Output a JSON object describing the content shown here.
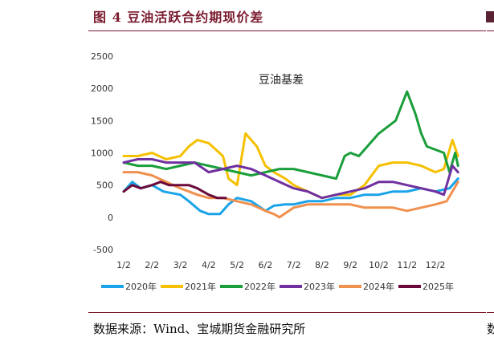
{
  "figure": {
    "title": "图 4 豆油活跃合约期现价差",
    "source": "数据来源：Wind、宝城期货金融研究所"
  },
  "chart_data": {
    "type": "line",
    "title": "豆油基差",
    "xlabel": "",
    "ylabel": "",
    "x_ticks": [
      "1/2",
      "2/2",
      "3/2",
      "4/2",
      "5/2",
      "6/2",
      "7/2",
      "8/2",
      "9/2",
      "10/2",
      "11/2",
      "12/2"
    ],
    "y_ticks": [
      2500,
      2000,
      1500,
      1000,
      500,
      0,
      -500
    ],
    "ylim": [
      -500,
      2500
    ],
    "grid": false,
    "legend_position": "bottom",
    "series": [
      {
        "name": "2020年",
        "color": "#1aa3e8",
        "x": [
          0,
          0.3,
          0.6,
          1.0,
          1.4,
          2.0,
          2.3,
          2.7,
          3.0,
          3.4,
          3.7,
          4.0,
          4.5,
          5.0,
          5.3,
          5.7,
          6.0,
          6.5,
          7.0,
          7.5,
          8.0,
          8.5,
          9.0,
          9.5,
          10.0,
          10.5,
          11.0,
          11.5,
          11.8
        ],
        "values": [
          400,
          550,
          450,
          500,
          400,
          350,
          250,
          100,
          50,
          50,
          200,
          300,
          250,
          100,
          180,
          200,
          200,
          250,
          250,
          300,
          300,
          350,
          350,
          400,
          400,
          450,
          400,
          450,
          600
        ]
      },
      {
        "name": "2021年",
        "color": "#f5c000",
        "x": [
          0,
          0.5,
          1.0,
          1.5,
          2.0,
          2.3,
          2.6,
          3.0,
          3.5,
          3.7,
          4.0,
          4.3,
          4.7,
          5.0,
          5.3,
          5.7,
          6.0,
          6.5,
          7.0,
          7.5,
          8.0,
          8.5,
          9.0,
          9.5,
          10.0,
          10.5,
          11.0,
          11.3,
          11.6,
          11.8
        ],
        "values": [
          950,
          950,
          1000,
          900,
          950,
          1100,
          1200,
          1150,
          950,
          600,
          500,
          1300,
          1100,
          800,
          700,
          600,
          500,
          400,
          300,
          350,
          350,
          500,
          800,
          850,
          850,
          800,
          700,
          750,
          1200,
          950
        ]
      },
      {
        "name": "2022年",
        "color": "#1a9e3a",
        "x": [
          0,
          0.5,
          1.0,
          1.5,
          2.0,
          2.5,
          3.0,
          3.5,
          4.0,
          4.5,
          5.0,
          5.5,
          6.0,
          6.5,
          7.0,
          7.5,
          7.8,
          8.0,
          8.3,
          8.6,
          9.0,
          9.3,
          9.6,
          10.0,
          10.3,
          10.5,
          10.7,
          11.0,
          11.3,
          11.5,
          11.7,
          11.8
        ],
        "values": [
          850,
          800,
          800,
          750,
          800,
          850,
          800,
          750,
          700,
          650,
          700,
          750,
          750,
          700,
          650,
          600,
          950,
          1000,
          950,
          1100,
          1300,
          1400,
          1500,
          1950,
          1600,
          1300,
          1100,
          1050,
          1000,
          700,
          1000,
          800
        ]
      },
      {
        "name": "2023年",
        "color": "#7030a0",
        "x": [
          0,
          0.5,
          1.0,
          1.5,
          2.0,
          2.5,
          3.0,
          3.5,
          4.0,
          4.5,
          5.0,
          5.5,
          6.0,
          6.5,
          7.0,
          7.5,
          8.0,
          8.5,
          9.0,
          9.5,
          10.0,
          10.5,
          11.0,
          11.3,
          11.6,
          11.8
        ],
        "values": [
          850,
          900,
          900,
          850,
          850,
          850,
          700,
          750,
          800,
          750,
          650,
          550,
          450,
          400,
          300,
          350,
          400,
          450,
          550,
          550,
          500,
          450,
          400,
          350,
          800,
          700
        ]
      },
      {
        "name": "2024年",
        "color": "#f0904e",
        "x": [
          0,
          0.5,
          1.0,
          1.5,
          2.0,
          2.3,
          2.6,
          3.0,
          3.5,
          4.0,
          4.5,
          5.0,
          5.3,
          5.5,
          6.0,
          6.5,
          7.0,
          7.5,
          8.0,
          8.5,
          9.0,
          9.5,
          10.0,
          10.5,
          11.0,
          11.4,
          11.6,
          11.8
        ],
        "values": [
          700,
          700,
          650,
          550,
          450,
          400,
          350,
          300,
          300,
          250,
          200,
          100,
          50,
          0,
          150,
          200,
          200,
          200,
          200,
          150,
          150,
          150,
          100,
          150,
          200,
          250,
          400,
          550
        ]
      },
      {
        "name": "2025年",
        "color": "#6b0a3a",
        "x": [
          0,
          0.3,
          0.6,
          1.0,
          1.3,
          1.6,
          2.0,
          2.3,
          2.6,
          3.0,
          3.3,
          3.6
        ],
        "values": [
          400,
          500,
          450,
          500,
          550,
          500,
          500,
          500,
          450,
          350,
          300,
          300
        ]
      }
    ]
  }
}
